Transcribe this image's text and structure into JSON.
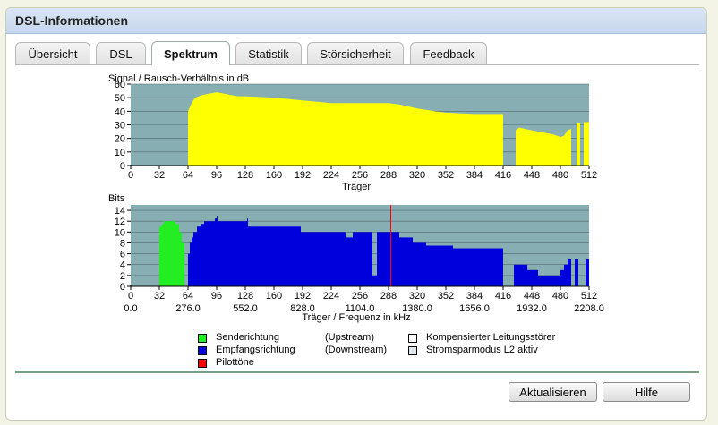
{
  "window": {
    "title": "DSL-Informationen"
  },
  "tabs": [
    {
      "label": "Übersicht",
      "active": false
    },
    {
      "label": "DSL",
      "active": false
    },
    {
      "label": "Spektrum",
      "active": true
    },
    {
      "label": "Statistik",
      "active": false
    },
    {
      "label": "Störsicherheit",
      "active": false
    },
    {
      "label": "Feedback",
      "active": false
    }
  ],
  "buttons": {
    "refresh": "Aktualisieren",
    "help": "Hilfe"
  },
  "legend": {
    "upstream_label": "Senderichtung",
    "upstream_dir": "(Upstream)",
    "downstream_label": "Empfangsrichtung",
    "downstream_dir": "(Downstream)",
    "pilot_label": "Pilottöne",
    "compensated_label": "Kompensierter Leitungsstörer",
    "l2_label": "Stromsparmodus L2 aktiv"
  },
  "colors": {
    "plot_bg": "#87aeb2",
    "snr": "#ffff00",
    "upstream": "#22ee22",
    "downstream": "#0000dd",
    "pilot": "#ff0000"
  },
  "chart_data": [
    {
      "type": "area",
      "ylabel": "Signal / Rausch-Verhältnis in dB",
      "xlabel": "Träger",
      "xlim": [
        0,
        512
      ],
      "ylim": [
        0,
        60
      ],
      "grid": true,
      "xticks": [
        0,
        32,
        64,
        96,
        128,
        160,
        192,
        224,
        256,
        288,
        320,
        352,
        384,
        416,
        448,
        480,
        512
      ],
      "yticks": [
        0,
        10,
        20,
        30,
        40,
        50,
        60
      ],
      "series": [
        {
          "x": [
            64,
            68,
            72,
            80,
            88,
            96,
            104,
            112,
            120,
            128,
            160,
            192,
            224,
            256,
            288,
            300,
            320,
            340,
            352,
            384,
            416
          ],
          "y": [
            40,
            46,
            50,
            52,
            53,
            54,
            53,
            52,
            51,
            51,
            50,
            48,
            46,
            46,
            46,
            45,
            42,
            40,
            39,
            38,
            38
          ]
        },
        {
          "x": [
            430,
            434,
            440,
            448,
            464,
            472,
            480,
            484,
            488,
            492
          ],
          "y": [
            26,
            28,
            27,
            26,
            24,
            23,
            21,
            22,
            26,
            27
          ]
        },
        {
          "x": [
            498,
            502
          ],
          "y": [
            31,
            31
          ]
        },
        {
          "x": [
            506,
            512
          ],
          "y": [
            32,
            32
          ]
        }
      ]
    },
    {
      "type": "bar",
      "ylabel": "Bits",
      "xlabel": "Träger / Frequenz in kHz",
      "xlim": [
        0,
        512
      ],
      "ylim": [
        0,
        15
      ],
      "grid": true,
      "xticks": [
        0,
        32,
        64,
        96,
        128,
        160,
        192,
        224,
        256,
        288,
        320,
        352,
        384,
        416,
        448,
        480,
        512
      ],
      "freq_ticks": [
        "0.0",
        "276.0",
        "552.0",
        "828.0",
        "1104.0",
        "1380.0",
        "1656.0",
        "1932.0",
        "2208.0"
      ],
      "yticks": [
        0,
        2,
        4,
        6,
        8,
        10,
        12,
        14
      ],
      "series": [
        {
          "name": "Senderichtung",
          "segments": [
            [
              32,
              35,
              11
            ],
            [
              35,
              37,
              11.5
            ],
            [
              37,
              50,
              12
            ],
            [
              50,
              54,
              11.5
            ],
            [
              54,
              57,
              10
            ],
            [
              57,
              60,
              8
            ]
          ]
        },
        {
          "name": "Empfangsrichtung",
          "segments": [
            [
              64,
              66,
              6
            ],
            [
              66,
              68,
              8
            ],
            [
              68,
              70,
              9
            ],
            [
              70,
              74,
              10
            ],
            [
              74,
              78,
              11
            ],
            [
              78,
              82,
              11.5
            ],
            [
              82,
              94,
              12
            ],
            [
              94,
              96,
              12.5
            ],
            [
              96,
              97,
              13
            ],
            [
              97,
              130,
              12
            ],
            [
              130,
              131,
              12.5
            ],
            [
              131,
              165,
              11
            ],
            [
              165,
              190,
              11
            ],
            [
              190,
              240,
              10
            ],
            [
              240,
              248,
              9
            ],
            [
              248,
              270,
              10
            ],
            [
              270,
              275,
              2
            ],
            [
              275,
              300,
              10
            ],
            [
              300,
              315,
              9
            ],
            [
              315,
              330,
              8
            ],
            [
              330,
              360,
              7.5
            ],
            [
              360,
              376,
              7
            ],
            [
              376,
              416,
              7
            ],
            [
              428,
              431,
              4
            ],
            [
              431,
              443,
              4
            ],
            [
              443,
              455,
              3
            ],
            [
              455,
              472,
              2
            ],
            [
              472,
              480,
              2
            ],
            [
              480,
              484,
              3
            ],
            [
              484,
              488,
              4
            ],
            [
              488,
              492,
              5
            ],
            [
              496,
              500,
              5
            ],
            [
              500,
              502,
              0
            ],
            [
              508,
              512,
              5
            ]
          ]
        },
        {
          "name": "Pilottöne",
          "segments": [
            [
              290,
              291,
              15
            ]
          ]
        }
      ]
    }
  ]
}
